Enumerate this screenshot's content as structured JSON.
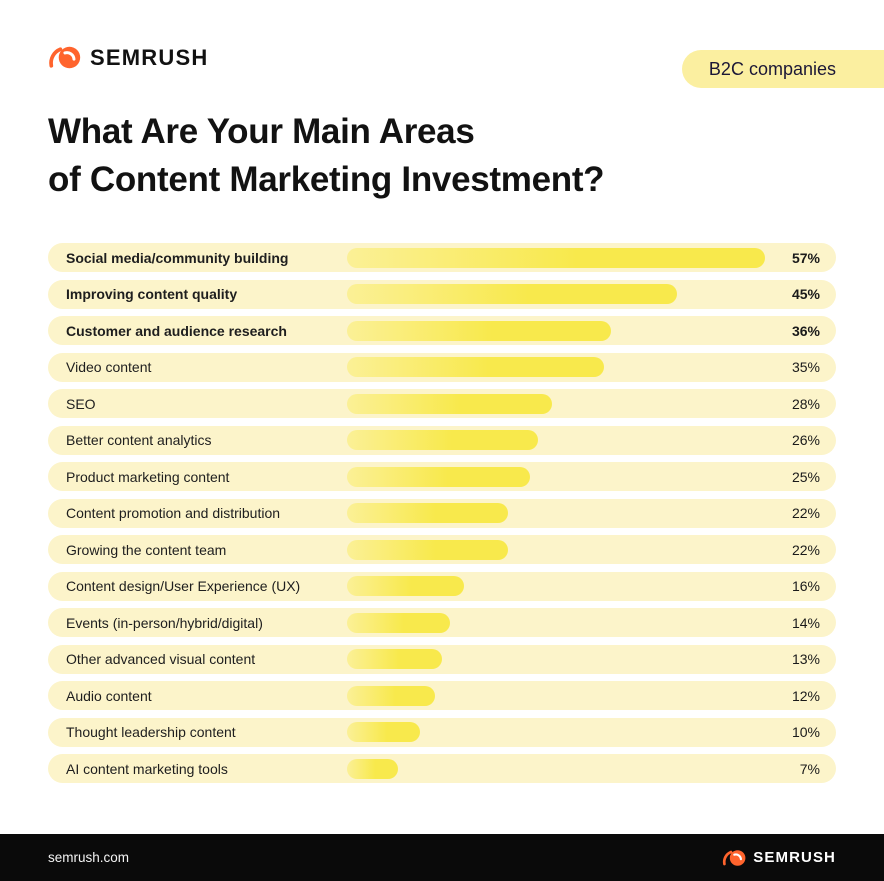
{
  "header": {
    "logo_text": "SEMRUSH",
    "badge": "B2C companies"
  },
  "title": {
    "line1": "What Are Your Main Areas",
    "line2": "of Content Marketing Investment?"
  },
  "chart_data": {
    "type": "bar",
    "orientation": "horizontal",
    "title": "What Are Your Main Areas of Content Marketing Investment?",
    "subtitle": "B2C companies",
    "categories": [
      "Social media/community building",
      "Improving content quality",
      "Customer and audience research",
      "Video content",
      "SEO",
      "Better content analytics",
      "Product marketing content",
      "Content promotion and distribution",
      "Growing the content team",
      "Content design/User Experience (UX)",
      "Events (in-person/hybrid/digital)",
      "Other advanced visual content",
      "Audio content",
      "Thought leadership content",
      "AI content marketing tools"
    ],
    "values": [
      57,
      45,
      36,
      35,
      28,
      26,
      25,
      22,
      22,
      16,
      14,
      13,
      12,
      10,
      7
    ],
    "value_suffix": "%",
    "max_value": 57,
    "bold_top_n": 3,
    "xlim": [
      0,
      60
    ],
    "grid": false,
    "legend": "none",
    "colors": {
      "bar": "#F8E94C",
      "bar_highlight": "#FBF096",
      "row_background": "#FCF4CA",
      "badge_background": "#FBEFA0",
      "brand_orange": "#FF642D",
      "text": "#121212",
      "footer_background": "#0A0A0A"
    }
  },
  "footer": {
    "website": "semrush.com",
    "logo_text": "SEMRUSH"
  }
}
